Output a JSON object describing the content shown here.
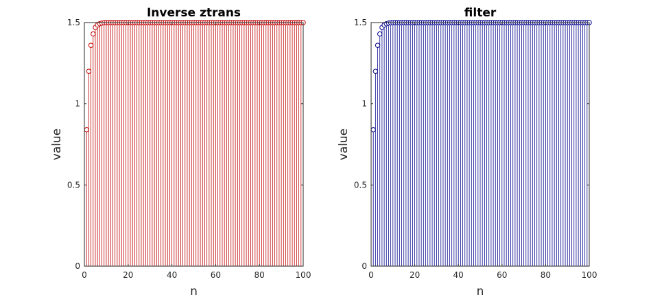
{
  "chart_data": [
    {
      "type": "stem",
      "title": "Inverse ztrans",
      "xlabel": "n",
      "ylabel": "value",
      "xlim": [
        0,
        100
      ],
      "ylim": [
        0,
        1.5
      ],
      "xticks": [
        0,
        20,
        40,
        60,
        80,
        100
      ],
      "xtick_labels": [
        "0",
        "20",
        "40",
        "60",
        "80",
        "100"
      ],
      "yticks": [
        0,
        0.5,
        1,
        1.5
      ],
      "ytick_labels": [
        "0",
        "0.5",
        "1",
        "1.5"
      ],
      "grid": false,
      "marker": "circle",
      "color": "#c00000",
      "series": [
        {
          "x": [
            1,
            2,
            3,
            4,
            5,
            6,
            7,
            8,
            9,
            10,
            11,
            12,
            13,
            14,
            15,
            16,
            17,
            18,
            19,
            20,
            21,
            22,
            23,
            24,
            25,
            26,
            27,
            28,
            29,
            30,
            31,
            32,
            33,
            34,
            35,
            36,
            37,
            38,
            39,
            40,
            41,
            42,
            43,
            44,
            45,
            46,
            47,
            48,
            49,
            50,
            51,
            52,
            53,
            54,
            55,
            56,
            57,
            58,
            59,
            60,
            61,
            62,
            63,
            64,
            65,
            66,
            67,
            68,
            69,
            70,
            71,
            72,
            73,
            74,
            75,
            76,
            77,
            78,
            79,
            80,
            81,
            82,
            83,
            84,
            85,
            86,
            87,
            88,
            89,
            90,
            91,
            92,
            93,
            94,
            95,
            96,
            97,
            98,
            99,
            100
          ],
          "y": [
            0.84,
            1.2,
            1.36,
            1.43,
            1.47,
            1.485,
            1.493,
            1.497,
            1.499,
            1.5,
            1.5,
            1.5,
            1.5,
            1.5,
            1.5,
            1.5,
            1.5,
            1.5,
            1.5,
            1.5,
            1.5,
            1.5,
            1.5,
            1.5,
            1.5,
            1.5,
            1.5,
            1.5,
            1.5,
            1.5,
            1.5,
            1.5,
            1.5,
            1.5,
            1.5,
            1.5,
            1.5,
            1.5,
            1.5,
            1.5,
            1.5,
            1.5,
            1.5,
            1.5,
            1.5,
            1.5,
            1.5,
            1.5,
            1.5,
            1.5,
            1.5,
            1.5,
            1.5,
            1.5,
            1.5,
            1.5,
            1.5,
            1.5,
            1.5,
            1.5,
            1.5,
            1.5,
            1.5,
            1.5,
            1.5,
            1.5,
            1.5,
            1.5,
            1.5,
            1.5,
            1.5,
            1.5,
            1.5,
            1.5,
            1.5,
            1.5,
            1.5,
            1.5,
            1.5,
            1.5,
            1.5,
            1.5,
            1.5,
            1.5,
            1.5,
            1.5,
            1.5,
            1.5,
            1.5,
            1.5,
            1.5,
            1.5,
            1.5,
            1.5,
            1.5,
            1.5,
            1.5,
            1.5,
            1.5,
            1.5
          ]
        }
      ]
    },
    {
      "type": "stem",
      "title": "filter",
      "xlabel": "n",
      "ylabel": "value",
      "xlim": [
        0,
        100
      ],
      "ylim": [
        0,
        1.5
      ],
      "xticks": [
        0,
        20,
        40,
        60,
        80,
        100
      ],
      "xtick_labels": [
        "0",
        "20",
        "40",
        "60",
        "80",
        "100"
      ],
      "yticks": [
        0,
        0.5,
        1,
        1.5
      ],
      "ytick_labels": [
        "0",
        "0.5",
        "1",
        "1.5"
      ],
      "grid": false,
      "marker": "circle",
      "color": "#00008b",
      "series": [
        {
          "x": [
            1,
            2,
            3,
            4,
            5,
            6,
            7,
            8,
            9,
            10,
            11,
            12,
            13,
            14,
            15,
            16,
            17,
            18,
            19,
            20,
            21,
            22,
            23,
            24,
            25,
            26,
            27,
            28,
            29,
            30,
            31,
            32,
            33,
            34,
            35,
            36,
            37,
            38,
            39,
            40,
            41,
            42,
            43,
            44,
            45,
            46,
            47,
            48,
            49,
            50,
            51,
            52,
            53,
            54,
            55,
            56,
            57,
            58,
            59,
            60,
            61,
            62,
            63,
            64,
            65,
            66,
            67,
            68,
            69,
            70,
            71,
            72,
            73,
            74,
            75,
            76,
            77,
            78,
            79,
            80,
            81,
            82,
            83,
            84,
            85,
            86,
            87,
            88,
            89,
            90,
            91,
            92,
            93,
            94,
            95,
            96,
            97,
            98,
            99,
            100
          ],
          "y": [
            0.84,
            1.2,
            1.36,
            1.43,
            1.47,
            1.485,
            1.493,
            1.497,
            1.499,
            1.5,
            1.5,
            1.5,
            1.5,
            1.5,
            1.5,
            1.5,
            1.5,
            1.5,
            1.5,
            1.5,
            1.5,
            1.5,
            1.5,
            1.5,
            1.5,
            1.5,
            1.5,
            1.5,
            1.5,
            1.5,
            1.5,
            1.5,
            1.5,
            1.5,
            1.5,
            1.5,
            1.5,
            1.5,
            1.5,
            1.5,
            1.5,
            1.5,
            1.5,
            1.5,
            1.5,
            1.5,
            1.5,
            1.5,
            1.5,
            1.5,
            1.5,
            1.5,
            1.5,
            1.5,
            1.5,
            1.5,
            1.5,
            1.5,
            1.5,
            1.5,
            1.5,
            1.5,
            1.5,
            1.5,
            1.5,
            1.5,
            1.5,
            1.5,
            1.5,
            1.5,
            1.5,
            1.5,
            1.5,
            1.5,
            1.5,
            1.5,
            1.5,
            1.5,
            1.5,
            1.5,
            1.5,
            1.5,
            1.5,
            1.5,
            1.5,
            1.5,
            1.5,
            1.5,
            1.5,
            1.5,
            1.5,
            1.5,
            1.5,
            1.5,
            1.5,
            1.5,
            1.5,
            1.5,
            1.5,
            1.5
          ]
        }
      ]
    }
  ]
}
